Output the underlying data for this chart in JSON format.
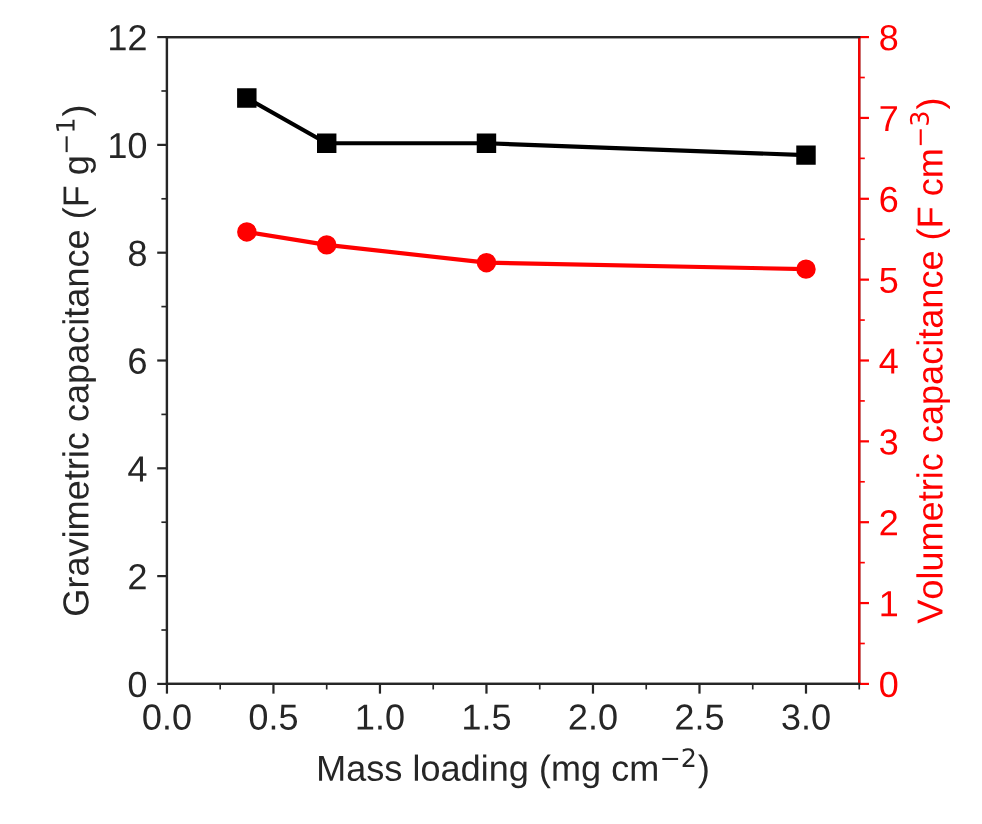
{
  "chart_data": {
    "type": "line",
    "xlabel": "Mass loading (mg cm$^{−2}$)",
    "ylabel": "Gravimetric capacitance (F g$^{−1}$)",
    "y2label": "Volumetric capacitance (F cm$^{−3}$)",
    "x": [
      0.375,
      0.75,
      1.5,
      3.0
    ],
    "series": [
      {
        "color": "#000000",
        "marker": "square",
        "values": [
          10.87,
          10.03,
          10.03,
          9.81
        ]
      },
      {
        "color": "#ff0000",
        "marker": "circle",
        "axis": "y2",
        "values": [
          5.59,
          5.43,
          5.21,
          5.13
        ]
      }
    ],
    "xlim": [
      0,
      3.25
    ],
    "xticks": [
      {
        "value": 0,
        "label": "0.0"
      },
      {
        "value": 0.5,
        "label": "0.5"
      },
      {
        "value": 1,
        "label": "1.0"
      },
      {
        "value": 1.5,
        "label": "1.5"
      },
      {
        "value": 2,
        "label": "2.0"
      },
      {
        "value": 2.5,
        "label": "2.5"
      },
      {
        "value": 3,
        "label": "3.0"
      }
    ],
    "ylim": [
      0,
      12
    ],
    "yticks": [
      0,
      2,
      4,
      6,
      8,
      10,
      12
    ],
    "y2lim": [
      0,
      8
    ],
    "y2ticks": [
      0,
      1,
      2,
      3,
      4,
      5,
      6,
      7,
      8
    ],
    "grid": false,
    "legend": false
  }
}
